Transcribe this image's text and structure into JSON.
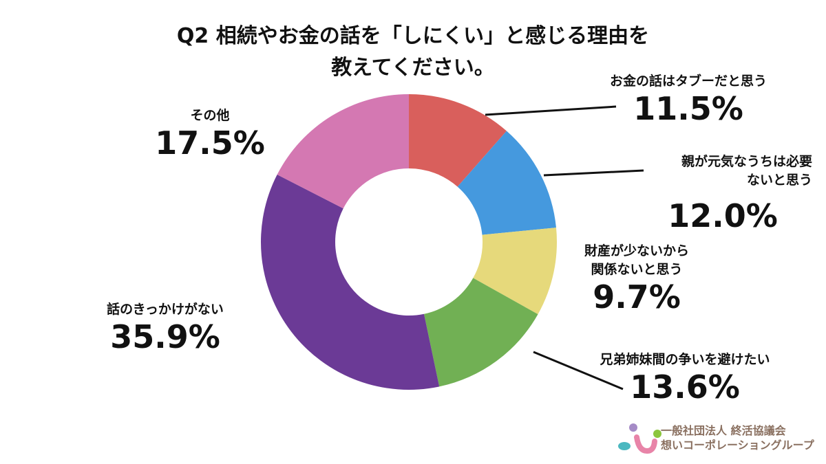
{
  "chart_data": {
    "type": "pie",
    "donut": true,
    "title": "Q2 相続やお金の話を「しにくい」と感じる理由を教えてください。",
    "title_lines": [
      "Q2 相続やお金の話を「しにくい」と感じる理由を",
      "教えてください。"
    ],
    "slices": [
      {
        "label": "お金の話はタブーだと思う",
        "label_lines": [
          "お金の話はタブーだと思う"
        ],
        "value": 11.5,
        "display": "11.5%",
        "color": "#d95f5c"
      },
      {
        "label": "親が元気なうちは必要ないと思う",
        "label_lines": [
          "親が元気なうちは必要",
          "ないと思う"
        ],
        "value": 12.0,
        "display": "12.0%",
        "color": "#4599de"
      },
      {
        "label": "財産が少ないから関係ないと思う",
        "label_lines": [
          "財産が少ないから",
          "関係ないと思う"
        ],
        "value": 9.7,
        "display": "9.7%",
        "color": "#e6d97b"
      },
      {
        "label": "兄弟姉妹間の争いを避けたい",
        "label_lines": [
          "兄弟姉妹間の争いを避けたい"
        ],
        "value": 13.6,
        "display": "13.6%",
        "color": "#71b054"
      },
      {
        "label": "話のきっかけがない",
        "label_lines": [
          "話のきっかけがない"
        ],
        "value": 35.9,
        "display": "35.9%",
        "color": "#6b3a96"
      },
      {
        "label": "その他",
        "label_lines": [
          "その他"
        ],
        "value": 17.5,
        "display": "17.5%",
        "color": "#d478b2"
      }
    ]
  },
  "logo": {
    "line1": "一般社団法人 終活協議会",
    "line2": "想いコーポレーショングループ"
  }
}
